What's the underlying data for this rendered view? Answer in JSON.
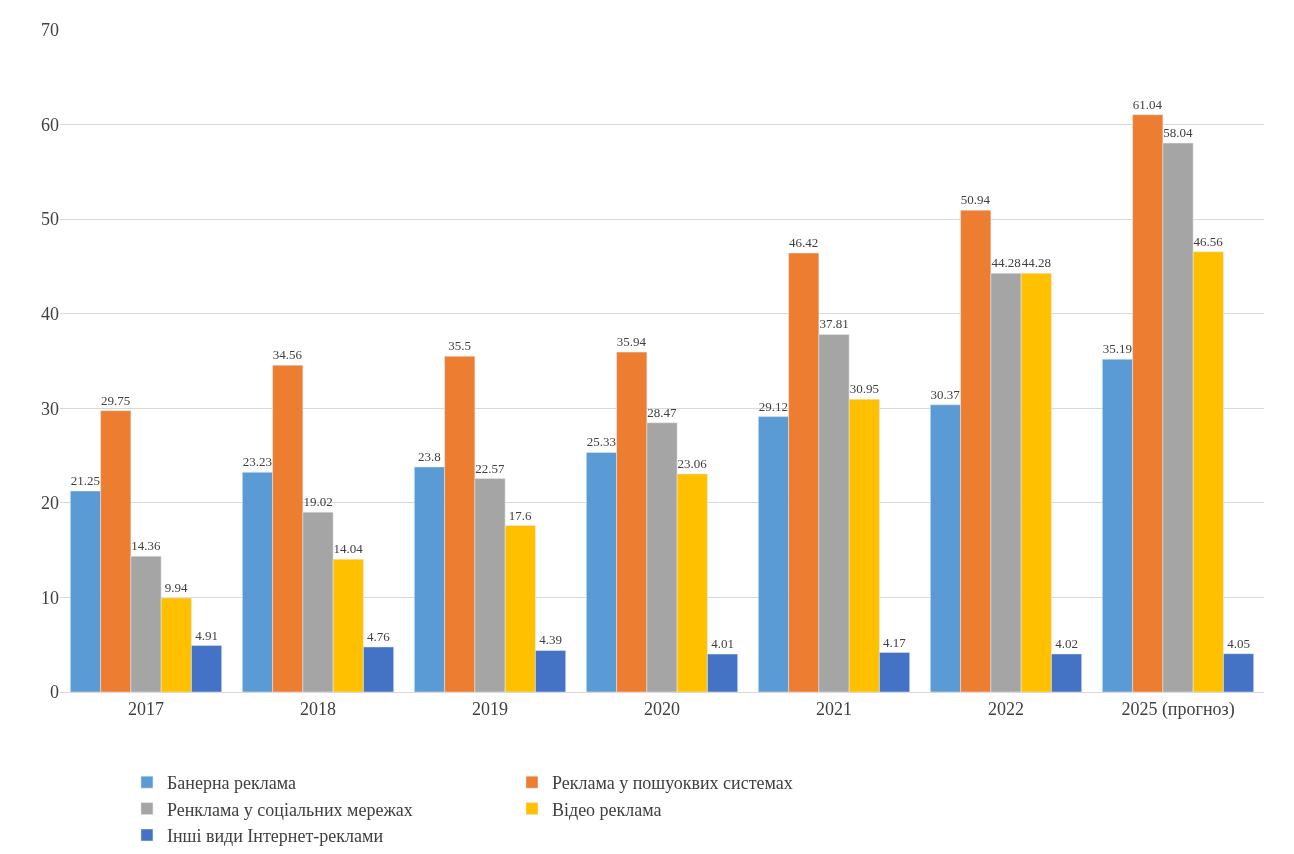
{
  "chart_data": {
    "type": "bar",
    "categories": [
      "2017",
      "2018",
      "2019",
      "2020",
      "2021",
      "2022",
      "2025 (прогноз)"
    ],
    "series": [
      {
        "name": "Банерна реклама",
        "color": "#5b9bd5",
        "values": [
          21.25,
          23.23,
          23.8,
          25.33,
          29.12,
          30.37,
          35.19
        ]
      },
      {
        "name": "Реклама у пошуоквих системах",
        "color": "#ed7d31",
        "values": [
          29.75,
          34.56,
          35.5,
          35.94,
          46.42,
          50.94,
          61.04
        ]
      },
      {
        "name": "Ренклама у соціальних мережах",
        "color": "#a5a5a5",
        "values": [
          14.36,
          19.02,
          22.57,
          28.47,
          37.81,
          44.28,
          58.04
        ]
      },
      {
        "name": "Відео реклама",
        "color": "#ffc000",
        "values": [
          9.94,
          14.04,
          17.6,
          23.06,
          30.95,
          44.28,
          46.56
        ]
      },
      {
        "name": "Інші види Інтернет-реклами",
        "color": "#4472c4",
        "values": [
          4.91,
          4.76,
          4.39,
          4.01,
          4.17,
          4.02,
          4.05
        ]
      }
    ],
    "ylim": [
      0,
      70
    ],
    "yticks": [
      0,
      10,
      20,
      30,
      40,
      50,
      60,
      70
    ],
    "grid": "y",
    "legend": "bottom",
    "data_labels": true
  }
}
